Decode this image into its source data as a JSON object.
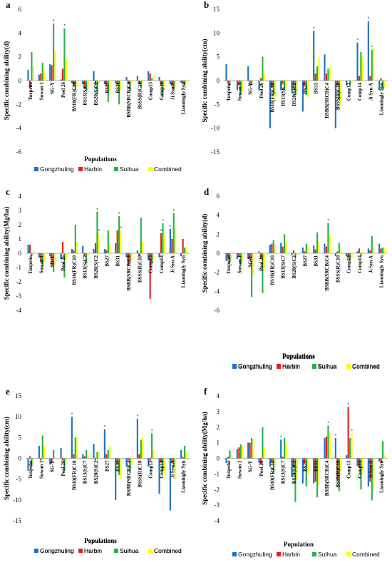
{
  "colors": {
    "Gongzhuling": "#1f72c4",
    "Harbin": "#e8201a",
    "Suihua": "#27b24a",
    "Combined": "#ffff00"
  },
  "legend": [
    "Gongzhuling",
    "Harbin",
    "Suihua",
    "Combined"
  ],
  "chart_data": [
    {
      "type": "bar",
      "panel": "a",
      "ylabel": "Specific combining ability(d)",
      "xlabel": "Populations",
      "ylim": [
        -6,
        6
      ],
      "yticks": [
        -6,
        -4,
        -2,
        0,
        2,
        4,
        6
      ],
      "categories": [
        "Tuxpeño",
        "Suwan 1",
        "SG-Y",
        "Pool 26",
        "BS10(FR)C10",
        "BS13(S)C7",
        "BS20(S)C2",
        "BS27",
        "BS31",
        "BSBB(SRCB)C4",
        "BSSS(R)C10",
        "Comp13",
        "Comp14",
        "Ji Syn A",
        "Liaoningly Syn"
      ],
      "label_mode": "over",
      "series": [
        {
          "name": "Gongzhuling",
          "values": [
            0.9,
            0.5,
            1.4,
            0.1,
            -0.2,
            -0.3,
            0.8,
            -0.3,
            -0.2,
            0.3,
            0.4,
            0.8,
            0.3,
            -0.3,
            -0.2
          ]
        },
        {
          "name": "Harbin",
          "values": [
            -0.6,
            0.6,
            1.3,
            1.0,
            -0.5,
            -0.6,
            -0.4,
            -0.5,
            -0.4,
            -0.3,
            -0.3,
            0.6,
            -0.4,
            -0.5,
            -0.2
          ]
        },
        {
          "name": "Suihua",
          "values": [
            2.4,
            1.5,
            4.8,
            4.4,
            -0.8,
            -0.9,
            -1.1,
            -1.8,
            -2.0,
            -0.9,
            -0.6,
            0.2,
            -1.4,
            -0.8,
            -0.4
          ]
        },
        {
          "name": "Combined",
          "values": [
            1.2,
            0.8,
            2.5,
            1.8,
            -0.5,
            -0.6,
            -0.3,
            -0.9,
            -0.8,
            -0.3,
            -0.2,
            0.4,
            -0.5,
            -0.5,
            -0.3
          ]
        }
      ],
      "stars": [
        [
          2,
          2
        ],
        [
          3,
          2
        ]
      ]
    },
    {
      "type": "bar",
      "panel": "b",
      "ylabel": "Specific combining ability(cm)",
      "xlabel": "Populations",
      "ylim": [
        -15,
        15
      ],
      "yticks": [
        -15,
        -10,
        -5,
        0,
        5,
        10,
        15
      ],
      "categories": [
        "Tuxpeño",
        "Suwan 1",
        "SG-Y",
        "Pool 26",
        "BS10(FR)C10",
        "BS13(S)C7",
        "BS20(S)C2",
        "BS27",
        "BS31",
        "BSBB(SRCB)C4",
        "BSSS(R)C10",
        "Comp13",
        "Comp14",
        "Ji Syn A",
        "Liaoningly Syn"
      ],
      "label_mode": "under",
      "series": [
        {
          "name": "Gongzhuling",
          "values": [
            3.5,
            -2.0,
            3.0,
            -2.0,
            -10.0,
            -2.0,
            -2.5,
            -6.5,
            10.5,
            5.5,
            -10.0,
            -1.0,
            8.0,
            12.5,
            -2.0
          ]
        },
        {
          "name": "Harbin",
          "values": [
            -0.5,
            -1.0,
            -1.0,
            0.5,
            -1.5,
            -0.5,
            -1.5,
            -1.0,
            1.5,
            1.5,
            -1.0,
            0.0,
            1.0,
            1.0,
            0.5
          ]
        },
        {
          "name": "Suihua",
          "values": [
            -1.0,
            -3.0,
            -1.0,
            5.0,
            -3.0,
            -2.0,
            -3.0,
            -3.0,
            3.0,
            2.5,
            -4.0,
            -1.0,
            6.0,
            6.5,
            -2.0
          ]
        },
        {
          "name": "Combined",
          "values": [
            0.5,
            -2.0,
            0.3,
            1.5,
            -4.5,
            -1.5,
            -2.5,
            -3.5,
            5.0,
            3.0,
            -5.0,
            -0.7,
            5.0,
            6.8,
            -1.5
          ]
        }
      ],
      "stars": [
        [
          8,
          0
        ],
        [
          12,
          0
        ],
        [
          13,
          0
        ],
        [
          13,
          2
        ]
      ]
    },
    {
      "type": "bar",
      "panel": "c",
      "ylabel": "Specific combining ability(Mg/ha)",
      "xlabel": "Populations",
      "ylim": [
        -4,
        4
      ],
      "yticks": [
        -4,
        -3,
        -2,
        -1,
        0,
        1,
        2,
        3,
        4
      ],
      "categories": [
        "Tuxpeño",
        "Suwan 1",
        "SG-Y",
        "Pool 26",
        "BS10(FR)C10",
        "BS13(S)C7",
        "BS20(S)C2",
        "BS27",
        "BS31",
        "BSBB(SRCB)C4",
        "BSSS(R)C10",
        "Comp13",
        "Comp14",
        "Ji Syn A",
        "Liaoningly Syn"
      ],
      "label_mode": "under",
      "series": [
        {
          "name": "Gongzhuling",
          "values": [
            0.6,
            -0.3,
            -0.2,
            -0.4,
            0.3,
            0.5,
            0.3,
            0.3,
            0.7,
            -0.3,
            0.2,
            -0.5,
            -0.3,
            1.7,
            -0.2
          ]
        },
        {
          "name": "Harbin",
          "values": [
            0.6,
            -0.6,
            -0.8,
            0.8,
            0.2,
            -0.2,
            0.7,
            0.2,
            1.6,
            -0.8,
            -0.2,
            -3.2,
            1.4,
            1.0,
            1.0
          ]
        },
        {
          "name": "Suihua",
          "values": [
            -0.2,
            -1.0,
            -1.3,
            -1.7,
            2.0,
            -0.7,
            2.9,
            1.6,
            2.6,
            -0.6,
            2.5,
            -0.6,
            2.1,
            2.8,
            0.4
          ]
        },
        {
          "name": "Combined",
          "values": [
            0.2,
            -0.6,
            -0.8,
            -0.4,
            0.8,
            -0.2,
            1.4,
            0.7,
            1.6,
            -0.5,
            0.8,
            -0.4,
            1.3,
            1.8,
            0.4
          ]
        }
      ],
      "stars": [
        [
          6,
          2
        ],
        [
          6,
          3
        ],
        [
          8,
          2
        ],
        [
          8,
          3
        ],
        [
          12,
          1
        ],
        [
          12,
          2
        ],
        [
          13,
          0
        ],
        [
          13,
          2
        ]
      ]
    },
    {
      "type": "bar",
      "panel": "d",
      "ylabel": "Specific combining ability(d)",
      "xlabel": "Populations",
      "ylim": [
        -6,
        6
      ],
      "yticks": [
        -6,
        -4,
        -2,
        0,
        2,
        4,
        6
      ],
      "categories": [
        "Tuxpeño",
        "Suwan 1",
        "SG-Y",
        "Pool 26",
        "BS10(FR)C10",
        "BS13(S)C7",
        "BS20(S)C2",
        "BS27",
        "BS31",
        "BSBB(SRCB)C4",
        "BSSS(R)C10",
        "Comp13",
        "Comp14",
        "Ji Syn A",
        "Liaoningly Syn"
      ],
      "label_mode": "under",
      "series": [
        {
          "name": "Gongzhuling",
          "values": [
            -0.8,
            -0.6,
            -0.6,
            0.2,
            0.9,
            1.1,
            -0.2,
            0.6,
            0.8,
            1.0,
            -0.3,
            -0.3,
            0.2,
            0.5,
            1.0
          ]
        },
        {
          "name": "Harbin",
          "values": [
            -0.5,
            -0.3,
            -0.8,
            -0.5,
            1.0,
            0.7,
            0.3,
            0.2,
            0.4,
            0.7,
            0.2,
            -0.5,
            0.5,
            0.3,
            0.5
          ]
        },
        {
          "name": "Suihua",
          "values": [
            -1.0,
            -1.2,
            -4.6,
            -4.2,
            1.4,
            2.0,
            -0.5,
            1.0,
            2.2,
            3.2,
            1.1,
            -0.8,
            -0.3,
            1.8,
            0.6
          ]
        },
        {
          "name": "Combined",
          "values": [
            -0.8,
            -0.7,
            -2.3,
            -1.6,
            0.9,
            1.2,
            -0.2,
            0.6,
            1.2,
            1.8,
            0.4,
            -0.5,
            0.2,
            0.9,
            0.6
          ]
        }
      ],
      "stars": [
        [
          9,
          2
        ]
      ]
    },
    {
      "type": "bar",
      "panel": "e",
      "ylabel": "Specific combining ability(cm)",
      "xlabel": "Populations",
      "ylim": [
        -15,
        15
      ],
      "yticks": [
        -15,
        -10,
        -5,
        0,
        5,
        10,
        15
      ],
      "categories": [
        "Tuxpeño",
        "Suwan 1",
        "SG-Y",
        "Pool 26",
        "BS10(FR)C10",
        "BS13(S)C7",
        "BS20(S)C2",
        "BS27",
        "BS31",
        "BSBB(SRCB)C4",
        "BSSS(R)C10",
        "Comp13",
        "Comp14",
        "Ji Syn A",
        "Liaoningly Syn"
      ],
      "label_mode": "under",
      "series": [
        {
          "name": "Gongzhuling",
          "values": [
            -3.0,
            3.0,
            -1.5,
            2.5,
            10.0,
            1.0,
            3.5,
            7.0,
            -10.0,
            -2.0,
            9.5,
            -2.0,
            -8.5,
            -12.5,
            2.0
          ]
        },
        {
          "name": "Harbin",
          "values": [
            0.5,
            -0.5,
            -1.0,
            -0.5,
            1.0,
            0.5,
            -0.5,
            1.0,
            -1.5,
            -0.5,
            1.0,
            -0.5,
            -1.0,
            -1.0,
            0.3
          ]
        },
        {
          "name": "Suihua",
          "values": [
            -2.0,
            5.5,
            2.0,
            -3.0,
            5.0,
            2.0,
            1.5,
            2.0,
            -4.0,
            -3.5,
            4.5,
            6.0,
            -3.0,
            -2.0,
            3.0
          ]
        },
        {
          "name": "Combined",
          "values": [
            -1.5,
            3.0,
            0.5,
            -0.5,
            5.0,
            1.0,
            1.5,
            3.0,
            -5.0,
            -2.0,
            5.0,
            2.0,
            -4.0,
            -5.0,
            1.5
          ]
        }
      ],
      "stars": [
        [
          4,
          0
        ],
        [
          7,
          0
        ],
        [
          10,
          0
        ],
        [
          11,
          2
        ]
      ]
    },
    {
      "type": "bar",
      "panel": "f",
      "ylabel": "Specific combining ability(Mg/ha)",
      "xlabel": "Population",
      "ylim": [
        -4,
        4
      ],
      "yticks": [
        -4,
        -3,
        -2,
        -1,
        0,
        1,
        2,
        3,
        4
      ],
      "categories": [
        "Tuxpeño",
        "Suwan 1",
        "SG-Y",
        "Pool 26",
        "BS10(FR)C10",
        "BS13(S)C7",
        "BS20(S)C2",
        "BS27",
        "BS31",
        "BSBB(SRCB)C4",
        "BSSS(R)C10",
        "Comp13",
        "Comp14",
        "Ji Syn A",
        "Liaoningly Syn"
      ],
      "label_mode": "under",
      "series": [
        {
          "name": "Gongzhuling",
          "values": [
            -0.3,
            0.6,
            1.0,
            -0.3,
            -0.5,
            1.2,
            -1.2,
            -1.6,
            -1.6,
            1.3,
            1.3,
            0.2,
            -0.5,
            -1.8,
            -0.2
          ]
        },
        {
          "name": "Harbin",
          "values": [
            0.1,
            0.7,
            1.0,
            -0.4,
            -0.2,
            0.1,
            -0.6,
            -0.3,
            -1.5,
            1.4,
            -1.4,
            3.3,
            -0.6,
            -1.5,
            -0.3
          ]
        },
        {
          "name": "Suihua",
          "values": [
            0.5,
            0.9,
            1.3,
            2.0,
            -1.0,
            1.3,
            -2.8,
            -1.8,
            -2.5,
            2.1,
            -2.1,
            1.3,
            -2.0,
            -2.7,
            1.1
          ]
        },
        {
          "name": "Combined",
          "values": [
            0.2,
            0.8,
            1.2,
            0.7,
            -0.5,
            0.9,
            -1.4,
            -1.0,
            -1.7,
            1.6,
            -0.8,
            1.6,
            -1.0,
            -2.0,
            0.2
          ]
        }
      ],
      "stars": [
        [
          5,
          0
        ],
        [
          9,
          2
        ],
        [
          10,
          0
        ],
        [
          11,
          1
        ],
        [
          11,
          3
        ]
      ]
    }
  ]
}
